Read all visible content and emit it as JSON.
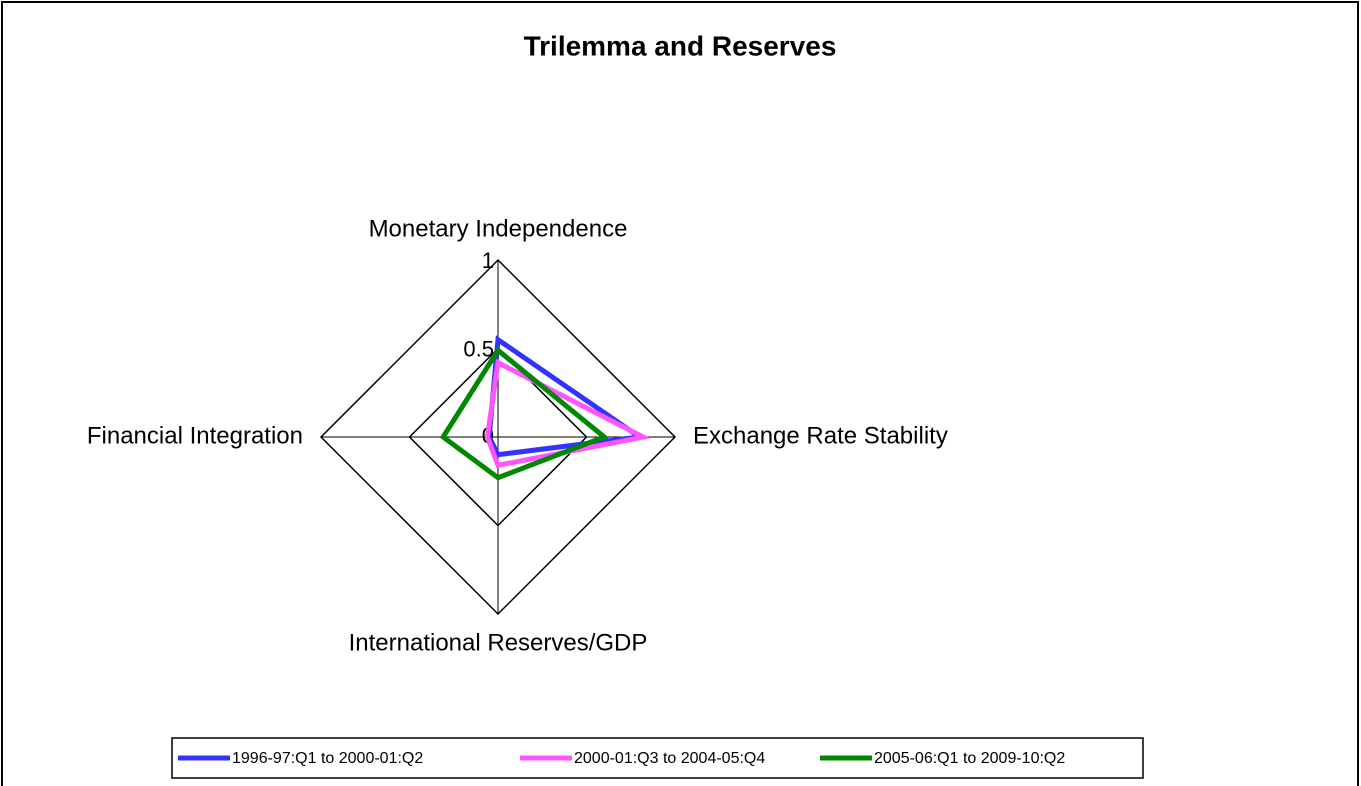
{
  "chart_data": {
    "type": "radar",
    "title": "Trilemma and Reserves",
    "categories": [
      "Monetary Independence",
      "Exchange Rate Stability",
      "International Reserves/GDP",
      "Financial Integration"
    ],
    "ylim": [
      0,
      1
    ],
    "yticks": [
      0,
      0.5,
      1
    ],
    "grid": true,
    "legend": "bottom",
    "series": [
      {
        "name": "1996-97:Q1 to 2000-01:Q2",
        "color": "#3333ff",
        "values": [
          0.55,
          0.8,
          0.1,
          0.05
        ]
      },
      {
        "name": "2000-01:Q3 to 2004-05:Q4",
        "color": "#ff55ff",
        "values": [
          0.42,
          0.82,
          0.16,
          0.06
        ]
      },
      {
        "name": "2005-06:Q1 to 2009-10:Q2",
        "color": "#008800",
        "values": [
          0.49,
          0.6,
          0.23,
          0.31
        ]
      }
    ]
  }
}
